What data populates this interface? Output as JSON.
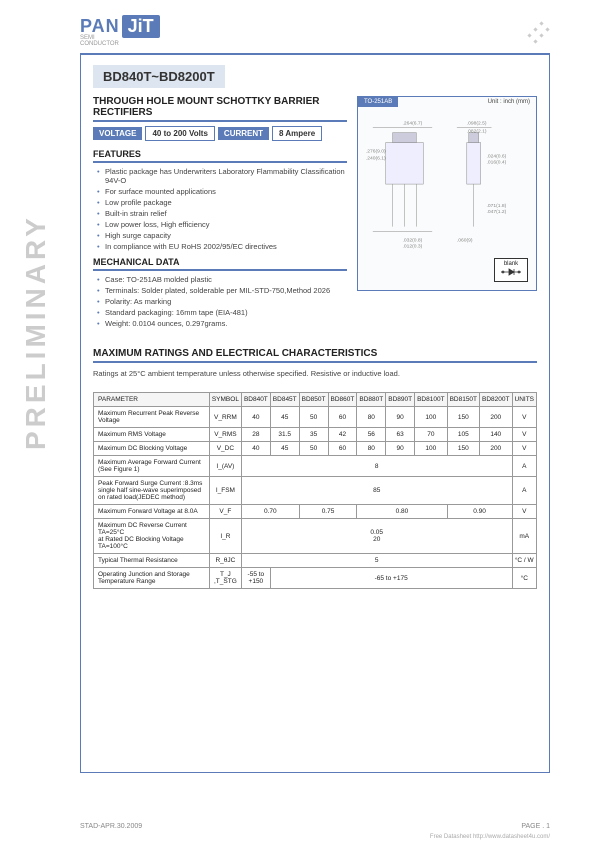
{
  "logo": {
    "pan": "PAN",
    "jit": "JiT",
    "sub": "SEMI\nCONDUCTOR"
  },
  "sidebar": "PRELIMINARY",
  "title": "BD840T~BD8200T",
  "subtitle": "THROUGH HOLE MOUNT SCHOTTKY BARRIER RECTIFIERS",
  "badges": {
    "voltage_label": "VOLTAGE",
    "voltage_val": "40 to 200  Volts",
    "current_label": "CURRENT",
    "current_val": "8 Ampere"
  },
  "package": {
    "label": "TO-251AB",
    "unit": "Unit : inch (mm)",
    "blank": "blank"
  },
  "features": {
    "header": "FEATURES",
    "items": [
      "Plastic package has Underwriters Laboratory Flammability Classification 94V-O",
      "For surface mounted applications",
      "Low profile package",
      "Built-in strain relief",
      "Low power loss, High efficiency",
      "High surge capacity",
      "In compliance with EU RoHS 2002/95/EC directives"
    ]
  },
  "mechanical": {
    "header": "MECHANICAL DATA",
    "items": [
      "Case: TO-251AB molded plastic",
      "Terminals: Solder plated, solderable per MIL-STD-750,Method 2026",
      "Polarity:  As marking",
      "Standard packaging: 16mm tape (EIA-481)",
      "Weight: 0.0104 ounces, 0.297grams."
    ]
  },
  "ratings": {
    "title": "MAXIMUM RATINGS AND ELECTRICAL CHARACTERISTICS",
    "note": "Ratings at 25°C ambient temperature unless otherwise specified. Resistive or inductive load."
  },
  "table": {
    "headers": [
      "PARAMETER",
      "SYMBOL",
      "BD840T",
      "BD845T",
      "BD850T",
      "BD860T",
      "BD880T",
      "BD890T",
      "BD8100T",
      "BD8150T",
      "BD8200T",
      "UNITS"
    ],
    "rows": [
      {
        "param": "Maximum Recurrent Peak Reverse Voltage",
        "sym": "V_RRM",
        "cells": [
          "40",
          "45",
          "50",
          "60",
          "80",
          "90",
          "100",
          "150",
          "200"
        ],
        "unit": "V"
      },
      {
        "param": "Maximum RMS Voltage",
        "sym": "V_RMS",
        "cells": [
          "28",
          "31.5",
          "35",
          "42",
          "56",
          "63",
          "70",
          "105",
          "140"
        ],
        "unit": "V"
      },
      {
        "param": "Maximum DC Blocking Voltage",
        "sym": "V_DC",
        "cells": [
          "40",
          "45",
          "50",
          "60",
          "80",
          "90",
          "100",
          "150",
          "200"
        ],
        "unit": "V"
      },
      {
        "param": "Maximum Average Forward  Current  (See Figure 1)",
        "sym": "I_(AV)",
        "span": "8",
        "unit": "A"
      },
      {
        "param": "Peak Forward Surge Current :8.3ms single half sine-wave superimposed on rated load(JEDEC method)",
        "sym": "I_FSM",
        "span": "85",
        "unit": "A"
      },
      {
        "param": "Maximum Forward Voltage at 8.0A",
        "sym": "V_F",
        "groups": [
          {
            "span": 2,
            "val": "0.70"
          },
          {
            "span": 2,
            "val": "0.75"
          },
          {
            "span": 3,
            "val": "0.80"
          },
          {
            "span": 2,
            "val": "0.90"
          }
        ],
        "unit": "V"
      },
      {
        "param": "Maximum DC Reverse Current TA=25°C\nat Rated DC Blocking Voltage TA=100°C",
        "sym": "I_R",
        "span": "0.05\n20",
        "unit": "mA"
      },
      {
        "param": "Typical Thermal Resistance",
        "sym": "R_θJC",
        "span": "5",
        "unit": "°C / W"
      },
      {
        "param": "Operating Junction and Storage Temperature Range",
        "sym": "T_J ,T_STG",
        "first": "-55 to +150",
        "rest": "-65 to +175",
        "unit": "°C"
      }
    ]
  },
  "footer": {
    "left": "STAD-APR.30.2009",
    "right": "PAGE  .  1",
    "link": "Free Datasheet http://www.datasheet4u.com/"
  },
  "colors": {
    "brand": "#5b7bb8",
    "brandLight": "#dde5f0",
    "border": "#999",
    "text": "#222"
  }
}
